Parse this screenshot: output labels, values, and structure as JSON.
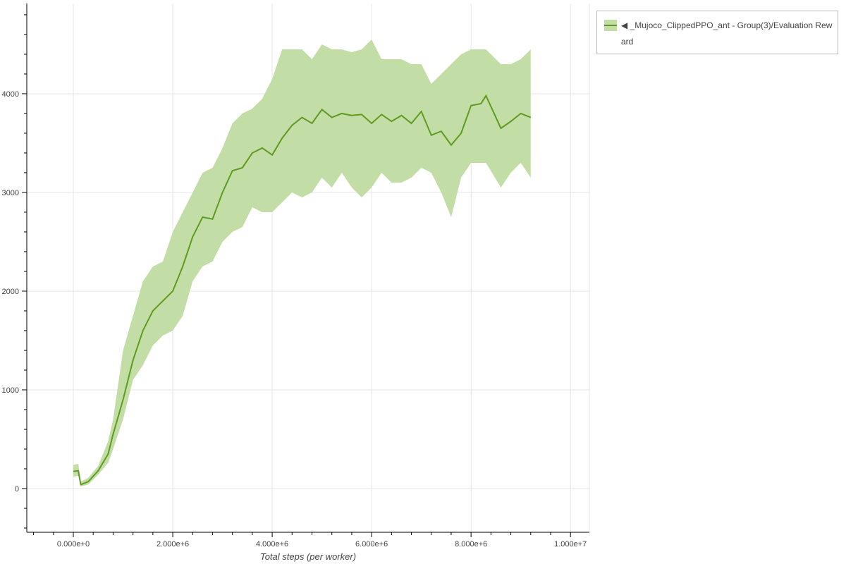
{
  "chart_data": {
    "type": "line",
    "title": "",
    "xlabel": "Total steps (per worker)",
    "ylabel": "",
    "xlim": [
      -936000,
      10380000
    ],
    "ylim": [
      -443,
      4914
    ],
    "grid": true,
    "legend_placement": "outside-top-right",
    "x_ticks": [
      0,
      2000000,
      4000000,
      6000000,
      8000000,
      10000000
    ],
    "x_tick_labels": [
      "0.000e+0",
      "2.000e+6",
      "4.000e+6",
      "6.000e+6",
      "8.000e+6",
      "1.000e+7"
    ],
    "y_ticks": [
      0,
      1000,
      2000,
      3000,
      4000
    ],
    "y_tick_labels": [
      "0",
      "1000",
      "2000",
      "3000",
      "4000"
    ],
    "colors": {
      "line": "#5e9b1f",
      "band": "#c3dda7"
    },
    "series": [
      {
        "name": "◀ _Mujoco_ClippedPPO_ant - Group(3)/Evaluation Reward",
        "x": [
          0,
          100000,
          150000,
          300000,
          500000,
          700000,
          800000,
          1000000,
          1200000,
          1400000,
          1600000,
          1800000,
          2000000,
          2200000,
          2400000,
          2600000,
          2800000,
          3000000,
          3200000,
          3400000,
          3600000,
          3800000,
          4000000,
          4200000,
          4400000,
          4600000,
          4800000,
          5000000,
          5200000,
          5400000,
          5600000,
          5800000,
          6000000,
          6200000,
          6400000,
          6600000,
          6800000,
          7000000,
          7200000,
          7400000,
          7600000,
          7800000,
          8000000,
          8200000,
          8300000,
          8600000,
          8800000,
          9000000,
          9200000
        ],
        "mean": [
          175,
          180,
          40,
          70,
          180,
          350,
          550,
          900,
          1300,
          1600,
          1800,
          1900,
          2000,
          2250,
          2550,
          2750,
          2730,
          3000,
          3220,
          3250,
          3400,
          3450,
          3380,
          3550,
          3680,
          3760,
          3700,
          3840,
          3760,
          3800,
          3780,
          3790,
          3700,
          3790,
          3720,
          3780,
          3700,
          3820,
          3580,
          3620,
          3480,
          3600,
          3880,
          3900,
          3980,
          3650,
          3720,
          3800,
          3760
        ],
        "upper": [
          240,
          250,
          70,
          110,
          230,
          480,
          700,
          1400,
          1750,
          2100,
          2250,
          2300,
          2600,
          2800,
          3000,
          3200,
          3250,
          3450,
          3700,
          3800,
          3850,
          3950,
          4150,
          4450,
          4450,
          4450,
          4350,
          4500,
          4450,
          4450,
          4420,
          4450,
          4550,
          4350,
          4350,
          4350,
          4300,
          4300,
          4100,
          4200,
          4300,
          4400,
          4450,
          4450,
          4450,
          4300,
          4300,
          4350,
          4450
        ],
        "lower": [
          120,
          130,
          20,
          40,
          140,
          260,
          400,
          700,
          1100,
          1250,
          1450,
          1550,
          1600,
          1750,
          2100,
          2250,
          2300,
          2500,
          2600,
          2650,
          2850,
          2800,
          2800,
          2900,
          3000,
          2950,
          3000,
          3150,
          3050,
          3200,
          3050,
          2950,
          3050,
          3200,
          3100,
          3100,
          3150,
          3250,
          3200,
          3000,
          2750,
          3150,
          3300,
          3300,
          3300,
          3050,
          3200,
          3300,
          3150
        ]
      }
    ]
  }
}
